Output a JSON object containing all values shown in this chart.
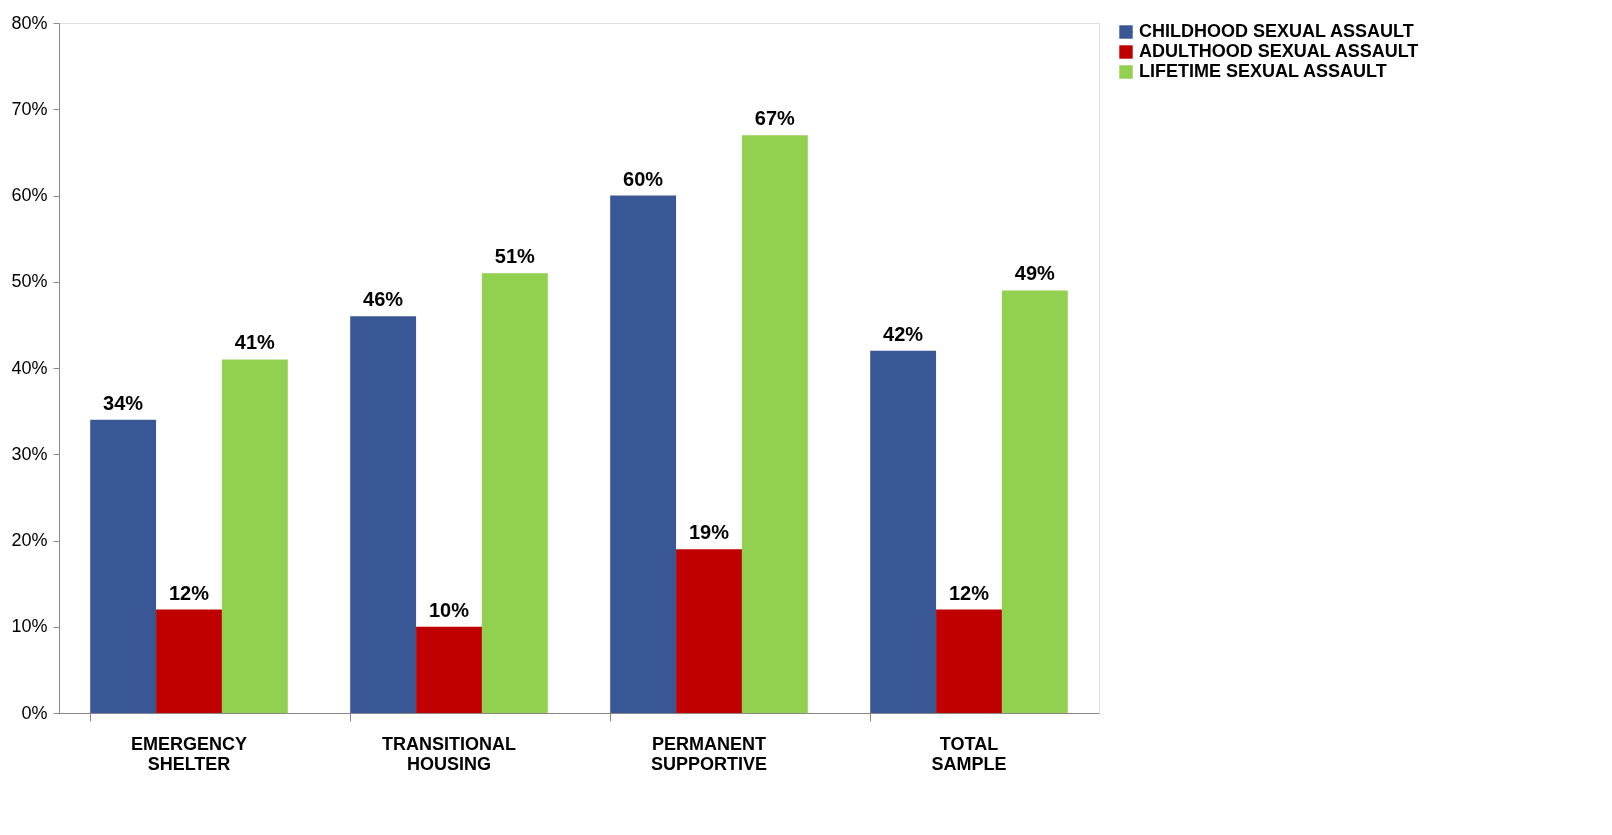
{
  "chart_data": {
    "type": "bar",
    "categories": [
      "EMERGENCY SHELTER",
      "TRANSITIONAL HOUSING",
      "PERMANENT SUPPORTIVE",
      "TOTAL SAMPLE"
    ],
    "series": [
      {
        "name": "CHILDHOOD SEXUAL ASSAULT",
        "color": "#3a5795",
        "values": [
          34,
          46,
          60,
          42
        ],
        "value_labels": [
          "34%",
          "46%",
          "60%",
          "42%"
        ]
      },
      {
        "name": "ADULTHOOD SEXUAL ASSAULT",
        "color": "#c00000",
        "values": [
          12,
          10,
          19,
          12
        ],
        "value_labels": [
          "12%",
          "10%",
          "19%",
          "12%"
        ]
      },
      {
        "name": "LIFETIME SEXUAL ASSAULT",
        "color": "#92d050",
        "values": [
          41,
          51,
          67,
          49
        ],
        "value_labels": [
          "41%",
          "51%",
          "67%",
          "49%"
        ]
      }
    ],
    "ylim": [
      0,
      80
    ],
    "yticks": [
      {
        "value": 0,
        "label": "0%"
      },
      {
        "value": 10,
        "label": "10%"
      },
      {
        "value": 20,
        "label": "20%"
      },
      {
        "value": 30,
        "label": "30%"
      },
      {
        "value": 40,
        "label": "40%"
      },
      {
        "value": 50,
        "label": "50%"
      },
      {
        "value": 60,
        "label": "60%"
      },
      {
        "value": 70,
        "label": "70%"
      },
      {
        "value": 80,
        "label": "80%"
      }
    ],
    "grid": false,
    "legend": "right"
  }
}
